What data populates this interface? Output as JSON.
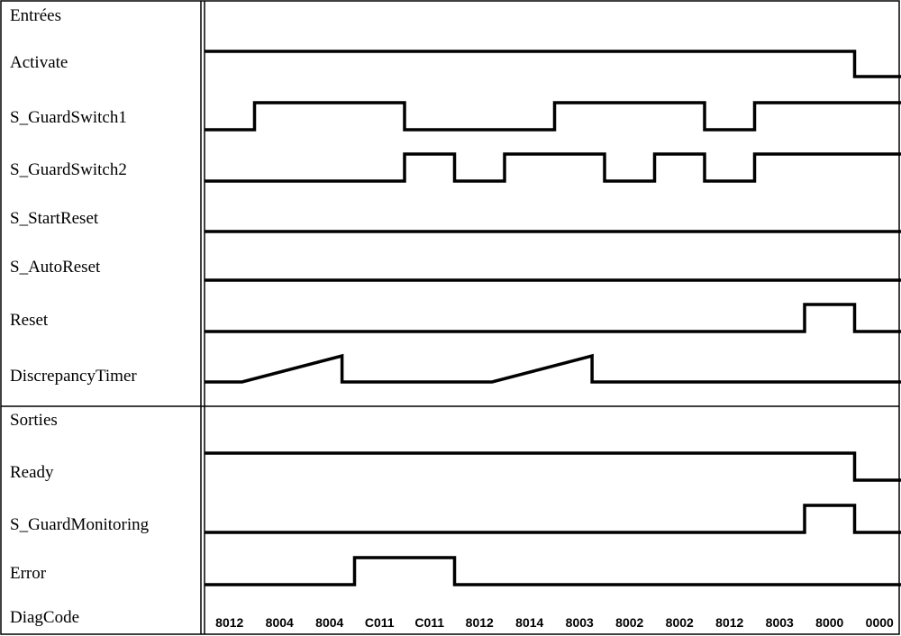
{
  "inputs_header": "Entrées",
  "outputs_header": "Sorties",
  "time_steps": 14,
  "inputs": [
    {
      "name": "Activate",
      "type": "digital",
      "values": [
        1,
        1,
        1,
        1,
        1,
        1,
        1,
        1,
        1,
        1,
        1,
        1,
        1,
        0
      ]
    },
    {
      "name": "S_GuardSwitch1",
      "type": "digital",
      "values": [
        0,
        1,
        1,
        1,
        0,
        0,
        0,
        1,
        1,
        1,
        0,
        1,
        1,
        1
      ]
    },
    {
      "name": "S_GuardSwitch2",
      "type": "digital",
      "values": [
        0,
        0,
        0,
        0,
        1,
        0,
        1,
        1,
        0,
        1,
        0,
        1,
        1,
        1
      ]
    },
    {
      "name": "S_StartReset",
      "type": "digital",
      "values": [
        0,
        0,
        0,
        0,
        0,
        0,
        0,
        0,
        0,
        0,
        0,
        0,
        0,
        0
      ]
    },
    {
      "name": "S_AutoReset",
      "type": "digital",
      "values": [
        0,
        0,
        0,
        0,
        0,
        0,
        0,
        0,
        0,
        0,
        0,
        0,
        0,
        0
      ]
    },
    {
      "name": "Reset",
      "type": "digital",
      "values": [
        0,
        0,
        0,
        0,
        0,
        0,
        0,
        0,
        0,
        0,
        0,
        0,
        1,
        0
      ]
    },
    {
      "name": "DiscrepancyTimer",
      "type": "timer",
      "ramps": [
        {
          "start_step": 0.75,
          "end_step": 2.75
        },
        {
          "start_step": 5.75,
          "end_step": 7.75
        }
      ]
    }
  ],
  "outputs": [
    {
      "name": "Ready",
      "type": "digital",
      "values": [
        1,
        1,
        1,
        1,
        1,
        1,
        1,
        1,
        1,
        1,
        1,
        1,
        1,
        0
      ]
    },
    {
      "name": "S_GuardMonitoring",
      "type": "digital",
      "values": [
        0,
        0,
        0,
        0,
        0,
        0,
        0,
        0,
        0,
        0,
        0,
        0,
        1,
        0
      ]
    },
    {
      "name": "Error",
      "type": "digital",
      "values": [
        0,
        0,
        0,
        1,
        1,
        0,
        0,
        0,
        0,
        0,
        0,
        0,
        0,
        0
      ]
    }
  ],
  "diag": {
    "name": "DiagCode",
    "codes": [
      "8012",
      "8004",
      "8004",
      "C011",
      "C011",
      "8012",
      "8014",
      "8003",
      "8002",
      "8002",
      "8012",
      "8003",
      "8000",
      "0000"
    ]
  }
}
